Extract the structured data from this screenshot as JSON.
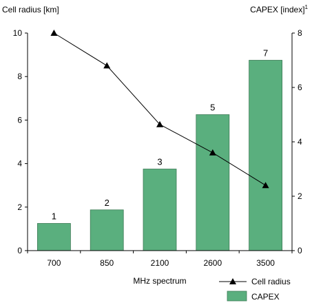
{
  "chart_data": {
    "type": "bar",
    "categories": [
      "700",
      "850",
      "2100",
      "2600",
      "3500"
    ],
    "xlabel": "MHz spectrum",
    "y_left": {
      "label": "Cell radius [km]",
      "lim": [
        0,
        10
      ],
      "ticks": [
        0,
        2,
        4,
        6,
        8,
        10
      ]
    },
    "y_right": {
      "label_main": "CAPEX [index]",
      "label_sup": "1",
      "lim": [
        0,
        8
      ],
      "ticks": [
        0,
        2,
        4,
        6,
        8
      ]
    },
    "bars": {
      "name": "CAPEX",
      "axis": "right",
      "values": [
        1,
        1.5,
        3,
        5,
        7
      ],
      "data_labels": [
        "1",
        "2",
        "3",
        "5",
        "7"
      ],
      "color": "#5aaf7e",
      "stroke": "#3c7a55"
    },
    "line": {
      "name": "Cell radius",
      "axis": "left",
      "values": [
        10,
        8.5,
        5.8,
        4.5,
        3.0
      ],
      "color": "#000000",
      "marker": "triangle"
    },
    "legend_position": "bottom-right",
    "grid": false
  }
}
